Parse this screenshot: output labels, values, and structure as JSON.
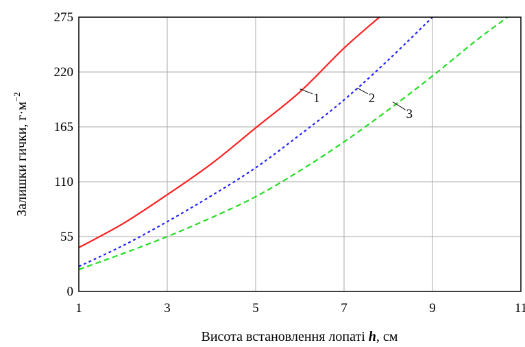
{
  "chart_data": {
    "type": "line",
    "title": "",
    "xlabel": {
      "pre": "Висота встановлення лопаті ",
      "var": "h",
      "post": ", см"
    },
    "ylabel": {
      "text": "Залишки гички, г·м",
      "sup": "−2"
    },
    "xlim": [
      1,
      11
    ],
    "ylim": [
      0,
      275
    ],
    "xticks": [
      1,
      3,
      5,
      7,
      9,
      11
    ],
    "yticks": [
      0,
      55,
      110,
      165,
      220,
      275
    ],
    "grid": true,
    "series": [
      {
        "name": "1",
        "color": "#ff2020",
        "dash": "solid",
        "x": [
          1,
          2,
          3,
          4,
          5,
          6,
          7,
          7.8
        ],
        "y": [
          44,
          68,
          97,
          128,
          164,
          200,
          244,
          275
        ]
      },
      {
        "name": "2",
        "color": "#2020ff",
        "dash": "dotted",
        "x": [
          1,
          2,
          3,
          4,
          5,
          6,
          7,
          8,
          9
        ],
        "y": [
          25,
          46,
          70,
          96,
          124,
          157,
          192,
          232,
          275
        ]
      },
      {
        "name": "3",
        "color": "#22dd22",
        "dash": "dashed",
        "x": [
          1,
          2,
          3,
          4,
          5,
          6,
          7,
          8,
          9,
          10,
          10.7
        ],
        "y": [
          22,
          38,
          55,
          74,
          95,
          121,
          150,
          182,
          216,
          252,
          275
        ]
      }
    ],
    "curve_labels": [
      {
        "text": "1",
        "x": 6.0,
        "y": 203,
        "lx": 6.35,
        "ly": 194
      },
      {
        "text": "2",
        "x": 7.3,
        "y": 204,
        "lx": 7.6,
        "ly": 194
      },
      {
        "text": "3",
        "x": 8.1,
        "y": 190,
        "lx": 8.45,
        "ly": 178
      }
    ]
  }
}
